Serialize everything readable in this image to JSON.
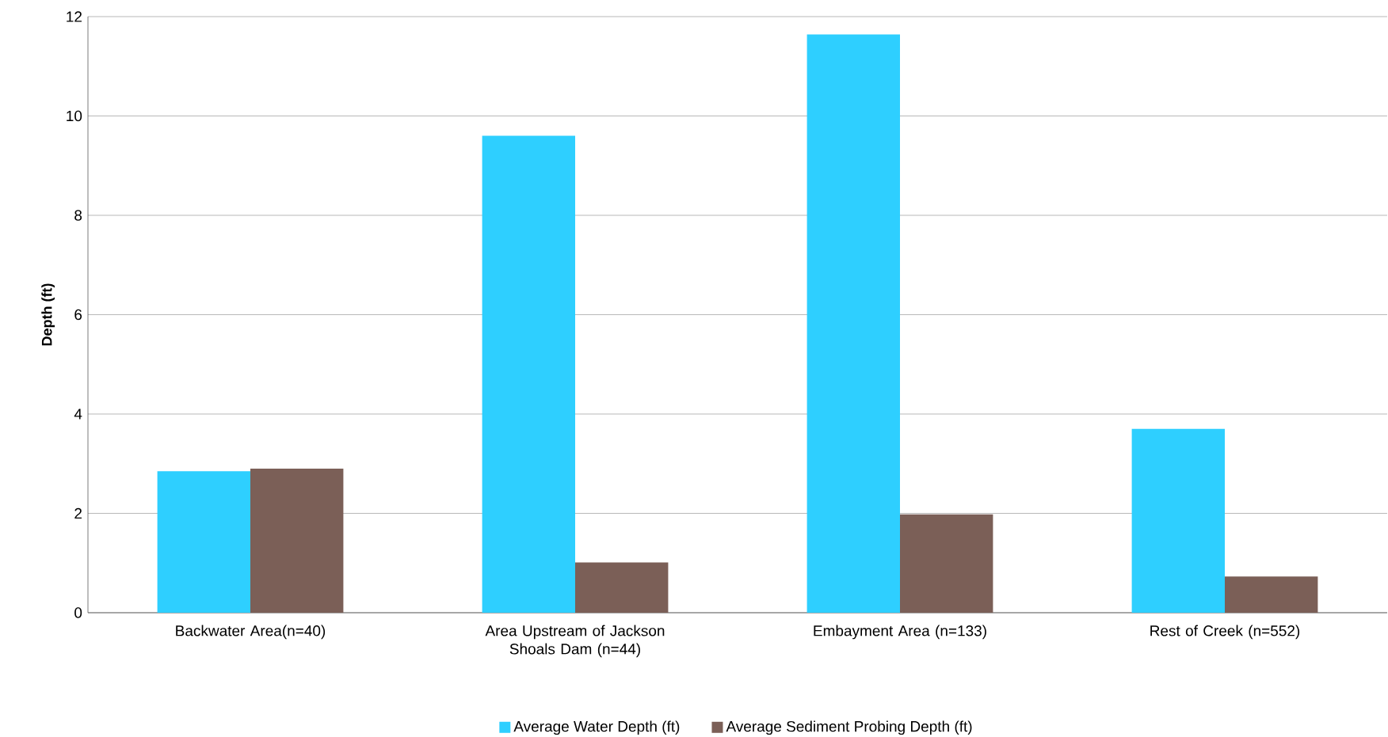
{
  "chart_data": {
    "type": "bar",
    "ylabel": "Depth (ft)",
    "categories": [
      "Backwater Area(n=40)",
      "Area Upstream of Jackson Shoals Dam (n=44)",
      "Embayment Area (n=133)",
      "Rest of Creek (n=552)"
    ],
    "series": [
      {
        "name": "Average Water Depth (ft)",
        "color": "#2ecfff",
        "values": [
          2.85,
          9.6,
          11.64,
          3.7
        ]
      },
      {
        "name": "Average Sediment Probing Depth (ft)",
        "color": "#7b5f57",
        "values": [
          2.9,
          1.01,
          1.98,
          0.73
        ]
      }
    ],
    "ylim": [
      0,
      12
    ],
    "yticks": [
      0,
      2,
      4,
      6,
      8,
      10,
      12
    ],
    "grid": "y",
    "legend": "bottom"
  }
}
